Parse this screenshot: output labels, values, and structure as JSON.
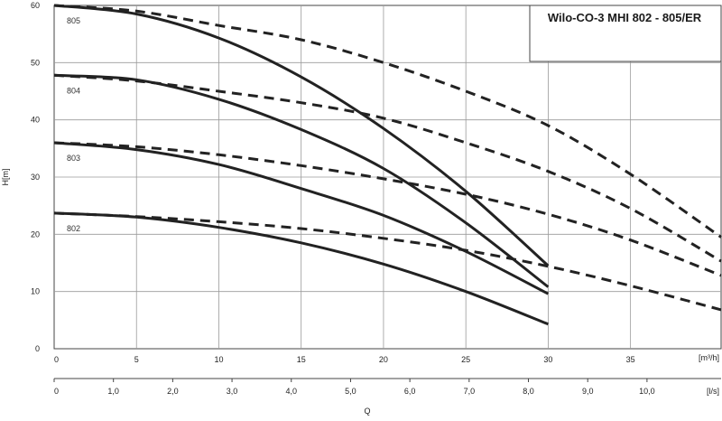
{
  "chart_data": {
    "type": "line",
    "title": "Wilo-CO-3 MHI 802 - 805/ER",
    "ylabel": "H[m]",
    "xlabel": "Q",
    "x_unit_primary": "[m³/h]",
    "x_unit_secondary": "[l/s]",
    "xlim": [
      0,
      40.5
    ],
    "ylim": [
      0,
      60
    ],
    "grid": true,
    "y_ticks": [
      "0",
      "10",
      "20",
      "30",
      "40",
      "50",
      "60"
    ],
    "x_ticks_m3h": [
      {
        "value": 0,
        "label": "0"
      },
      {
        "value": 5,
        "label": "5"
      },
      {
        "value": 10,
        "label": "10"
      },
      {
        "value": 15,
        "label": "15"
      },
      {
        "value": 20,
        "label": "20"
      },
      {
        "value": 25,
        "label": "25"
      },
      {
        "value": 30,
        "label": "30"
      },
      {
        "value": 35,
        "label": "35"
      }
    ],
    "x_ticks_ls": [
      {
        "value": 0,
        "label": "0"
      },
      {
        "value": 1,
        "label": "1,0"
      },
      {
        "value": 2,
        "label": "2,0"
      },
      {
        "value": 3,
        "label": "3,0"
      },
      {
        "value": 4,
        "label": "4,0"
      },
      {
        "value": 5,
        "label": "5,0"
      },
      {
        "value": 6,
        "label": "6,0"
      },
      {
        "value": 7,
        "label": "7,0"
      },
      {
        "value": 8,
        "label": "8,0"
      },
      {
        "value": 9,
        "label": "9,0"
      },
      {
        "value": 10,
        "label": "10,0"
      }
    ],
    "series": [
      {
        "name": "805",
        "style": "solid",
        "x": [
          0,
          5,
          10,
          15,
          20,
          25,
          30
        ],
        "y": [
          60,
          58.5,
          54.3,
          47.5,
          38.5,
          27.5,
          14.5
        ]
      },
      {
        "name": "804",
        "style": "solid",
        "x": [
          0,
          5,
          10,
          15,
          20,
          25,
          30
        ],
        "y": [
          47.8,
          47,
          43.6,
          38.3,
          31.5,
          22,
          10.8
        ]
      },
      {
        "name": "803",
        "style": "solid",
        "x": [
          0,
          5,
          10,
          15,
          20,
          25,
          30
        ],
        "y": [
          36,
          34.8,
          32.2,
          28,
          23.3,
          17,
          9.6
        ]
      },
      {
        "name": "802",
        "style": "solid",
        "x": [
          0,
          5,
          10,
          15,
          20,
          25,
          30
        ],
        "y": [
          23.7,
          23,
          21.2,
          18.5,
          14.8,
          10,
          4.3
        ]
      },
      {
        "style": "dashed",
        "x": [
          0,
          5,
          10,
          15,
          20,
          25,
          30,
          35,
          40.5
        ],
        "y": [
          60,
          59,
          56.5,
          54,
          50,
          45,
          39,
          30.5,
          19.5
        ]
      },
      {
        "style": "dashed",
        "x": [
          0,
          5,
          10,
          15,
          20,
          25,
          30,
          35,
          40.5
        ],
        "y": [
          47.8,
          46.8,
          45,
          43,
          40.3,
          36,
          31,
          24.5,
          15.3
        ]
      },
      {
        "style": "dashed",
        "x": [
          0,
          5,
          10,
          15,
          20,
          25,
          30,
          35,
          40.5
        ],
        "y": [
          36,
          35.3,
          33.9,
          32,
          29.7,
          27,
          23.5,
          19,
          12.8
        ]
      },
      {
        "style": "dashed",
        "x": [
          0,
          5,
          10,
          15,
          20,
          25,
          30,
          35,
          40.5
        ],
        "y": [
          23.7,
          23.1,
          22.2,
          21,
          19.3,
          17.2,
          14.4,
          11,
          6.8
        ]
      }
    ],
    "colors": {
      "curve": "#222222",
      "grid": "#9a9a9a",
      "frame": "#444444"
    }
  }
}
